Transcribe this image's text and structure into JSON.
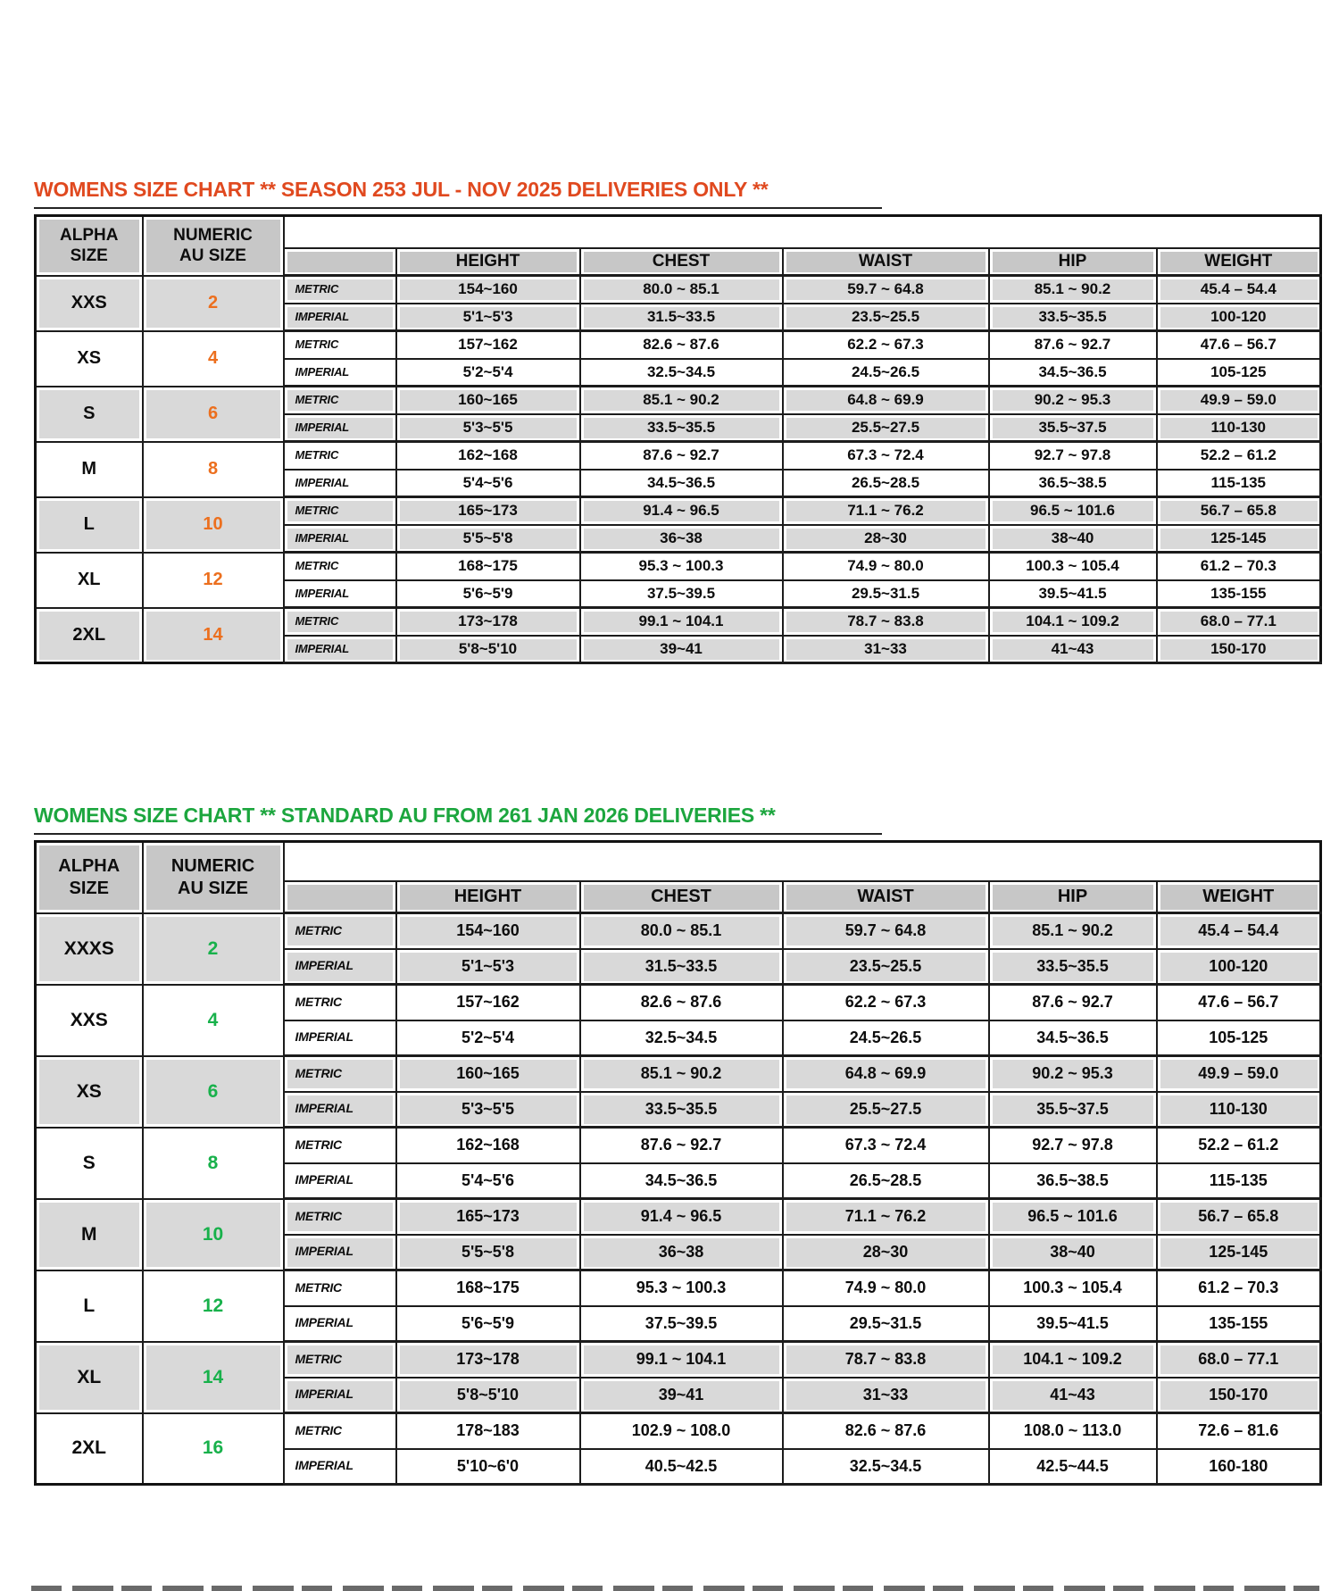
{
  "colors": {
    "season_253_accent": "#e0491f",
    "season_253_numeric": "#ec6f1e",
    "standard_au_accent": "#1ca63e",
    "standard_au_numeric": "#18b14b",
    "header_fill": "#c7c7c7",
    "shaded_row_fill": "#d9d9d9",
    "border": "#1c1c1c"
  },
  "tables": [
    {
      "title": "WOMENS SIZE CHART ** SEASON 253 JUL - NOV 2025 DELIVERIES ONLY **",
      "title_color": "#e0491f",
      "numeric_color": "#ec6f1e",
      "header": {
        "alpha_line1": "ALPHA",
        "alpha_line2": "SIZE",
        "numeric_line1": "NUMERIC",
        "numeric_line2": "AU SIZE"
      },
      "columns": [
        "HEIGHT",
        "CHEST",
        "WAIST",
        "HIP",
        "WEIGHT"
      ],
      "unit_labels": [
        "METRIC",
        "IMPERIAL"
      ],
      "groups": [
        {
          "alpha": "XXS",
          "numeric": "2",
          "shaded": true,
          "metric": [
            "154~160",
            "80.0 ~ 85.1",
            "59.7 ~ 64.8",
            "85.1 ~ 90.2",
            "45.4 – 54.4"
          ],
          "imperial": [
            "5'1~5'3",
            "31.5~33.5",
            "23.5~25.5",
            "33.5~35.5",
            "100-120"
          ]
        },
        {
          "alpha": "XS",
          "numeric": "4",
          "shaded": false,
          "metric": [
            "157~162",
            "82.6 ~ 87.6",
            "62.2 ~ 67.3",
            "87.6 ~ 92.7",
            "47.6 – 56.7"
          ],
          "imperial": [
            "5'2~5'4",
            "32.5~34.5",
            "24.5~26.5",
            "34.5~36.5",
            "105-125"
          ]
        },
        {
          "alpha": "S",
          "numeric": "6",
          "shaded": true,
          "metric": [
            "160~165",
            "85.1 ~ 90.2",
            "64.8 ~ 69.9",
            "90.2 ~ 95.3",
            "49.9 – 59.0"
          ],
          "imperial": [
            "5'3~5'5",
            "33.5~35.5",
            "25.5~27.5",
            "35.5~37.5",
            "110-130"
          ]
        },
        {
          "alpha": "M",
          "numeric": "8",
          "shaded": false,
          "metric": [
            "162~168",
            "87.6 ~ 92.7",
            "67.3 ~ 72.4",
            "92.7 ~ 97.8",
            "52.2 – 61.2"
          ],
          "imperial": [
            "5'4~5'6",
            "34.5~36.5",
            "26.5~28.5",
            "36.5~38.5",
            "115-135"
          ]
        },
        {
          "alpha": "L",
          "numeric": "10",
          "shaded": true,
          "metric": [
            "165~173",
            "91.4 ~ 96.5",
            "71.1 ~ 76.2",
            "96.5 ~ 101.6",
            "56.7 – 65.8"
          ],
          "imperial": [
            "5'5~5'8",
            "36~38",
            "28~30",
            "38~40",
            "125-145"
          ]
        },
        {
          "alpha": "XL",
          "numeric": "12",
          "shaded": false,
          "metric": [
            "168~175",
            "95.3 ~ 100.3",
            "74.9 ~ 80.0",
            "100.3 ~ 105.4",
            "61.2 – 70.3"
          ],
          "imperial": [
            "5'6~5'9",
            "37.5~39.5",
            "29.5~31.5",
            "39.5~41.5",
            "135-155"
          ]
        },
        {
          "alpha": "2XL",
          "numeric": "14",
          "shaded": true,
          "metric": [
            "173~178",
            "99.1 ~ 104.1",
            "78.7 ~ 83.8",
            "104.1 ~ 109.2",
            "68.0 – 77.1"
          ],
          "imperial": [
            "5'8~5'10",
            "39~41",
            "31~33",
            "41~43",
            "150-170"
          ]
        }
      ]
    },
    {
      "title": "WOMENS SIZE CHART ** STANDARD AU FROM 261 JAN 2026 DELIVERIES **",
      "title_color": "#1ca63e",
      "numeric_color": "#18b14b",
      "header": {
        "alpha_line1": "ALPHA",
        "alpha_line2": "SIZE",
        "numeric_line1": "NUMERIC",
        "numeric_line2": "AU SIZE"
      },
      "columns": [
        "HEIGHT",
        "CHEST",
        "WAIST",
        "HIP",
        "WEIGHT"
      ],
      "unit_labels": [
        "METRIC",
        "IMPERIAL"
      ],
      "groups": [
        {
          "alpha": "XXXS",
          "numeric": "2",
          "shaded": true,
          "metric": [
            "154~160",
            "80.0 ~ 85.1",
            "59.7 ~ 64.8",
            "85.1 ~ 90.2",
            "45.4 – 54.4"
          ],
          "imperial": [
            "5'1~5'3",
            "31.5~33.5",
            "23.5~25.5",
            "33.5~35.5",
            "100-120"
          ]
        },
        {
          "alpha": "XXS",
          "numeric": "4",
          "shaded": false,
          "metric": [
            "157~162",
            "82.6 ~ 87.6",
            "62.2 ~ 67.3",
            "87.6 ~ 92.7",
            "47.6 – 56.7"
          ],
          "imperial": [
            "5'2~5'4",
            "32.5~34.5",
            "24.5~26.5",
            "34.5~36.5",
            "105-125"
          ]
        },
        {
          "alpha": "XS",
          "numeric": "6",
          "shaded": true,
          "metric": [
            "160~165",
            "85.1 ~ 90.2",
            "64.8 ~ 69.9",
            "90.2 ~ 95.3",
            "49.9 – 59.0"
          ],
          "imperial": [
            "5'3~5'5",
            "33.5~35.5",
            "25.5~27.5",
            "35.5~37.5",
            "110-130"
          ]
        },
        {
          "alpha": "S",
          "numeric": "8",
          "shaded": false,
          "metric": [
            "162~168",
            "87.6 ~ 92.7",
            "67.3 ~ 72.4",
            "92.7 ~ 97.8",
            "52.2 – 61.2"
          ],
          "imperial": [
            "5'4~5'6",
            "34.5~36.5",
            "26.5~28.5",
            "36.5~38.5",
            "115-135"
          ]
        },
        {
          "alpha": "M",
          "numeric": "10",
          "shaded": true,
          "metric": [
            "165~173",
            "91.4 ~ 96.5",
            "71.1 ~ 76.2",
            "96.5 ~ 101.6",
            "56.7 – 65.8"
          ],
          "imperial": [
            "5'5~5'8",
            "36~38",
            "28~30",
            "38~40",
            "125-145"
          ]
        },
        {
          "alpha": "L",
          "numeric": "12",
          "shaded": false,
          "metric": [
            "168~175",
            "95.3 ~ 100.3",
            "74.9 ~ 80.0",
            "100.3 ~ 105.4",
            "61.2 – 70.3"
          ],
          "imperial": [
            "5'6~5'9",
            "37.5~39.5",
            "29.5~31.5",
            "39.5~41.5",
            "135-155"
          ]
        },
        {
          "alpha": "XL",
          "numeric": "14",
          "shaded": true,
          "metric": [
            "173~178",
            "99.1 ~ 104.1",
            "78.7 ~ 83.8",
            "104.1 ~ 109.2",
            "68.0 – 77.1"
          ],
          "imperial": [
            "5'8~5'10",
            "39~41",
            "31~33",
            "41~43",
            "150-170"
          ]
        },
        {
          "alpha": "2XL",
          "numeric": "16",
          "shaded": false,
          "metric": [
            "178~183",
            "102.9 ~ 108.0",
            "82.6 ~ 87.6",
            "108.0 ~ 113.0",
            "72.6 – 81.6"
          ],
          "imperial": [
            "5'10~6'0",
            "40.5~42.5",
            "32.5~34.5",
            "42.5~44.5",
            "160-180"
          ]
        }
      ]
    }
  ]
}
